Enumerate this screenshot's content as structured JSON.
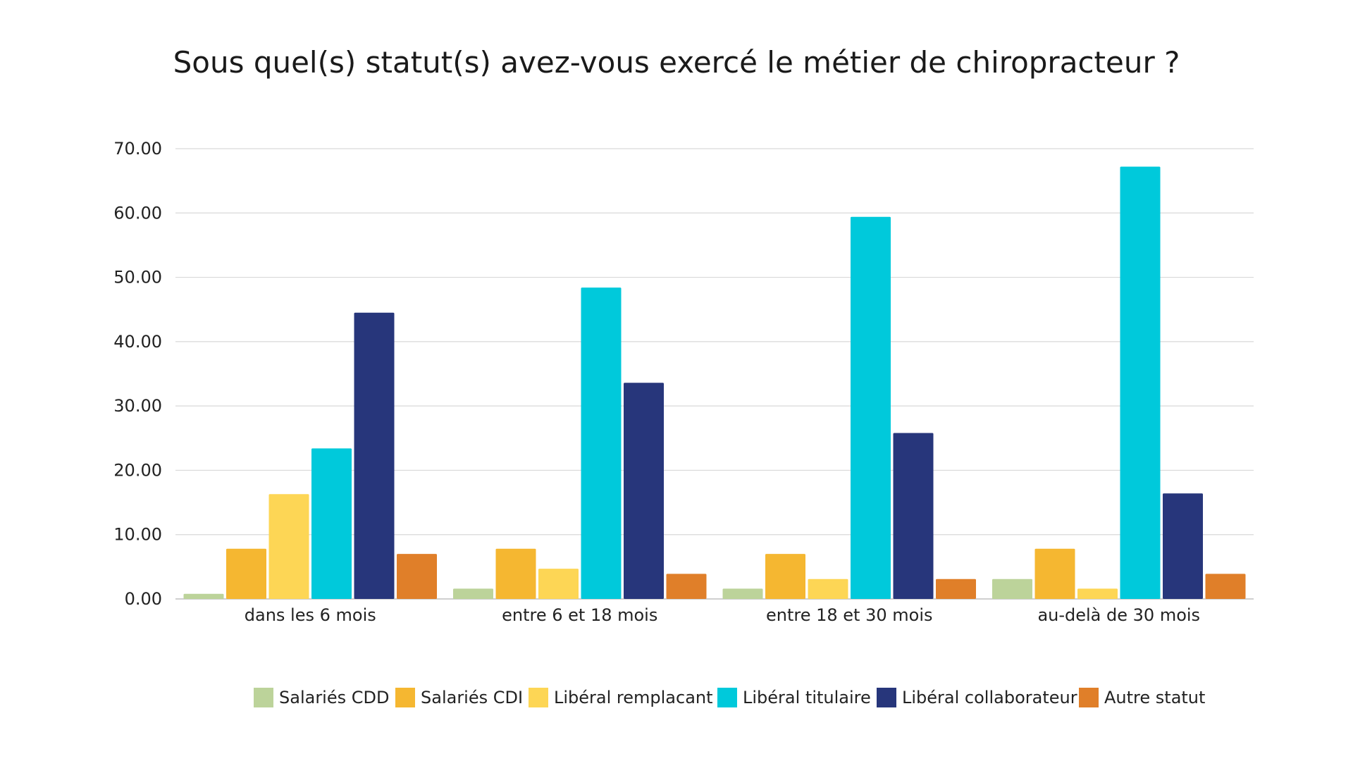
{
  "chart_data": {
    "type": "bar",
    "title": "Sous quel(s) statut(s) avez-vous exercé le métier de chiropracteur ?",
    "xlabel": "",
    "ylabel": "",
    "ylim": [
      0,
      70
    ],
    "yticks": [
      "0.00",
      "10.00",
      "20.00",
      "30.00",
      "40.00",
      "50.00",
      "60.00",
      "70.00"
    ],
    "grid": true,
    "legend_position": "bottom",
    "categories": [
      "dans les 6 mois",
      "entre 6 et 18 mois",
      "entre 18 et 30 mois",
      "au-delà de 30 mois"
    ],
    "series": [
      {
        "name": "Salariés CDD",
        "color": "#bcd39a",
        "values": [
          0.8,
          1.6,
          1.6,
          3.1
        ]
      },
      {
        "name": "Salariés CDI",
        "color": "#f5b731",
        "values": [
          7.8,
          7.8,
          7.0,
          7.8
        ]
      },
      {
        "name": "Libéral remplacant",
        "color": "#fdd655",
        "values": [
          16.3,
          4.7,
          3.1,
          1.6
        ]
      },
      {
        "name": "Libéral titulaire",
        "color": "#00c9db",
        "values": [
          23.4,
          48.4,
          59.4,
          67.2
        ]
      },
      {
        "name": "Libéral collaborateur",
        "color": "#27367b",
        "values": [
          44.5,
          33.6,
          25.8,
          16.4
        ]
      },
      {
        "name": "Autre statut",
        "color": "#e07f29",
        "values": [
          7.0,
          3.9,
          3.1,
          3.9
        ]
      }
    ]
  }
}
